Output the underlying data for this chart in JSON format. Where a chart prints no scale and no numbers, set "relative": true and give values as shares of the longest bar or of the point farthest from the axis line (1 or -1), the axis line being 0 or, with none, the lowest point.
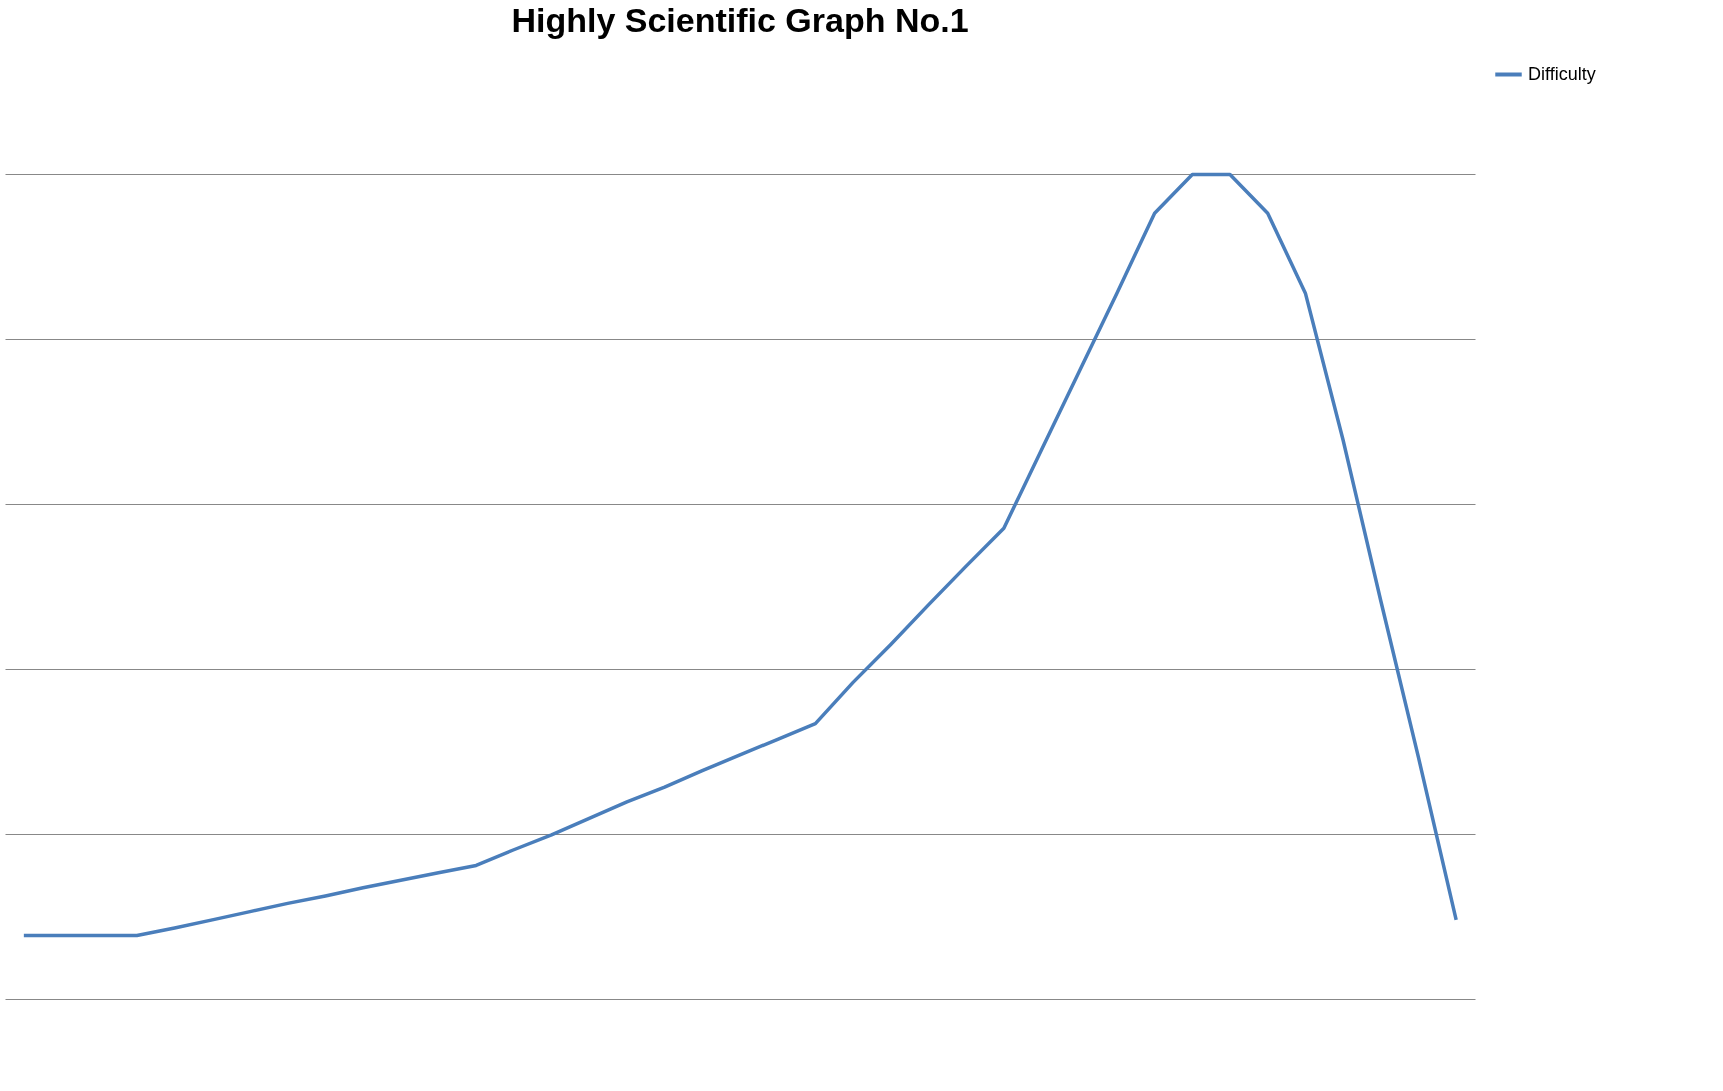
{
  "chart_data": {
    "type": "line",
    "title": "Highly Scientific Graph No.1",
    "relative": true,
    "grid": "y",
    "legend": "right",
    "tick_labels": false,
    "categories": [
      null,
      null,
      null,
      null,
      null,
      null,
      null,
      null,
      null,
      null,
      null,
      null,
      null,
      null,
      null,
      null,
      null,
      null,
      null,
      null,
      null,
      null,
      null,
      null,
      null,
      null,
      null,
      null,
      null,
      null,
      null,
      null,
      null,
      null,
      null,
      null,
      null,
      null,
      null
    ],
    "series": [
      {
        "name": "Difficulty",
        "color": "#4a7ebb",
        "values": [
          0.077,
          0.077,
          0.077,
          0.077,
          0.086,
          0.096,
          0.106,
          0.116,
          0.125,
          0.135,
          0.144,
          0.153,
          0.162,
          0.181,
          0.199,
          0.219,
          0.239,
          0.257,
          0.277,
          0.296,
          0.315,
          0.334,
          0.384,
          0.43,
          0.478,
          0.525,
          0.571,
          0.666,
          0.761,
          0.856,
          0.953,
          1,
          1,
          0.953,
          0.856,
          0.678,
          0.483,
          0.293,
          0.096
        ]
      }
    ]
  }
}
